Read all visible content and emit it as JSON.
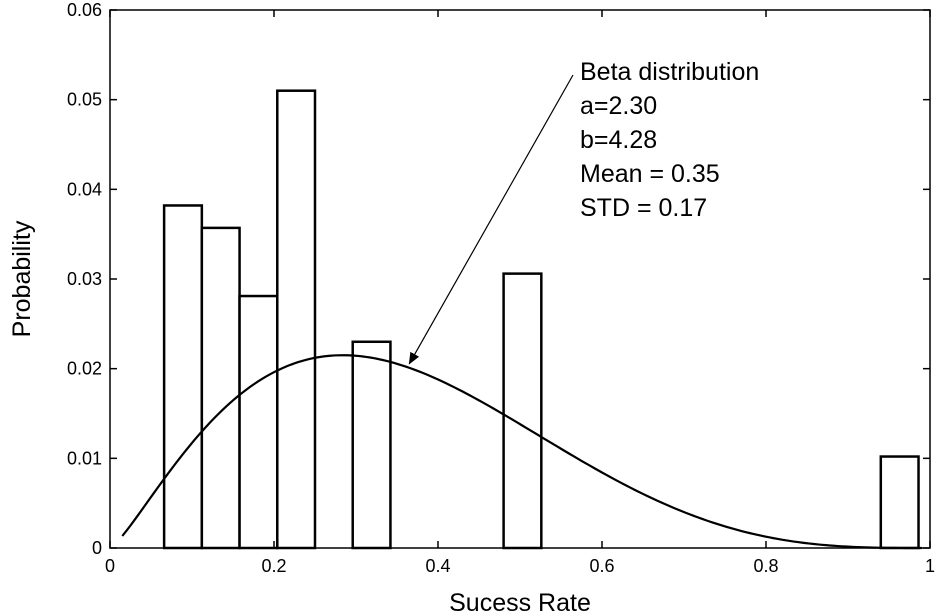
{
  "chart_data": {
    "type": "bar",
    "xlabel": "Sucess Rate",
    "ylabel": "Probability",
    "xlim": [
      0,
      1
    ],
    "ylim": [
      0,
      0.06
    ],
    "x_ticks": [
      "0",
      "0.2",
      "0.4",
      "0.6",
      "0.8",
      "1"
    ],
    "y_ticks": [
      "0",
      "0.01",
      "0.02",
      "0.03",
      "0.04",
      "0.05",
      "0.06"
    ],
    "bars": [
      {
        "x0": 0.066,
        "x1": 0.112,
        "value": 0.0382
      },
      {
        "x0": 0.112,
        "x1": 0.158,
        "value": 0.0357
      },
      {
        "x0": 0.158,
        "x1": 0.204,
        "value": 0.0281
      },
      {
        "x0": 0.204,
        "x1": 0.25,
        "value": 0.051
      },
      {
        "x0": 0.296,
        "x1": 0.342,
        "value": 0.023
      },
      {
        "x0": 0.48,
        "x1": 0.526,
        "value": 0.0306
      },
      {
        "x0": 0.94,
        "x1": 0.986,
        "value": 0.0102
      }
    ],
    "fit_curve": {
      "distribution": "beta",
      "a": 2.3,
      "b": 4.28,
      "x_range": [
        0.015,
        0.99
      ],
      "peak_value": 0.0215
    },
    "annotation": {
      "lines": [
        "Beta distribution",
        "a=2.30",
        "b=4.28",
        "Mean = 0.35",
        "STD = 0.17"
      ],
      "arrow_target_x": 0.365
    },
    "grid": false,
    "legend": "none"
  }
}
